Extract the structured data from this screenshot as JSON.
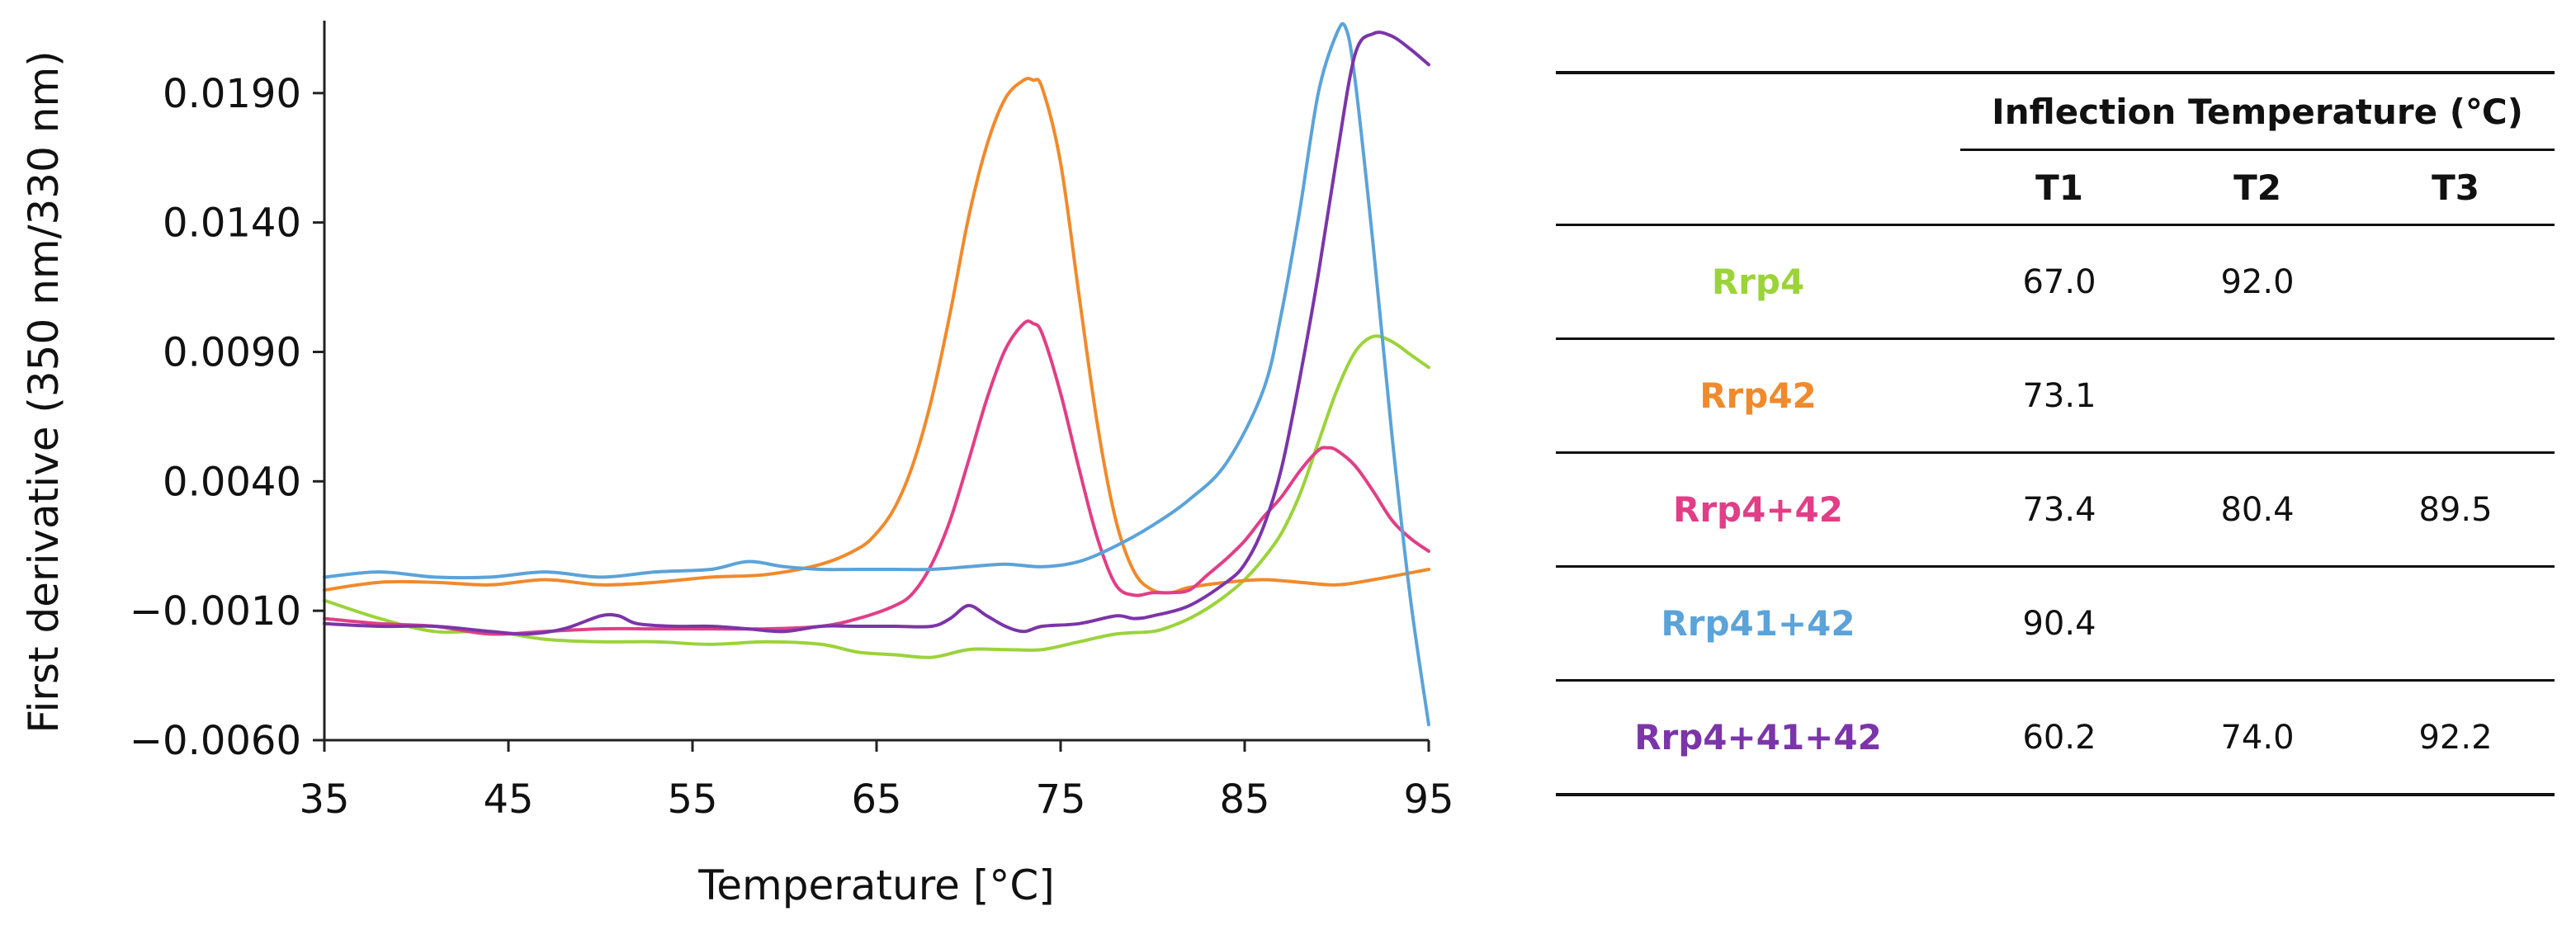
{
  "chart_data": {
    "type": "line",
    "xlabel": "Temperature [°C]",
    "ylabel": "First derivative (350 nm/330 nm)",
    "xlim": [
      35,
      95
    ],
    "ylim": [
      -0.006,
      0.0218
    ],
    "x_ticks": [
      35,
      45,
      55,
      65,
      75,
      85,
      95
    ],
    "y_ticks": [
      -0.006,
      -0.001,
      0.004,
      0.009,
      0.014,
      0.019
    ],
    "y_tick_labels": [
      "−0.0060",
      "−0.0010",
      "0.0040",
      "0.0090",
      "0.0140",
      "0.0190"
    ],
    "grid": false,
    "series": [
      {
        "name": "Rrp4",
        "color": "#9BD33A",
        "x": [
          35,
          38,
          41,
          44,
          47,
          50,
          53,
          56,
          59,
          62,
          64,
          66,
          68,
          70,
          72,
          74,
          76,
          78,
          80,
          81,
          82,
          83,
          84,
          85,
          86,
          87,
          88,
          89,
          90,
          91,
          92,
          93,
          94,
          95
        ],
        "y": [
          -0.0006,
          -0.0013,
          -0.0018,
          -0.0018,
          -0.0021,
          -0.0022,
          -0.0022,
          -0.0023,
          -0.0022,
          -0.0023,
          -0.0026,
          -0.0027,
          -0.0028,
          -0.0025,
          -0.0025,
          -0.0025,
          -0.0022,
          -0.0019,
          -0.0018,
          -0.0016,
          -0.0013,
          -0.0009,
          -0.0004,
          0.0002,
          0.001,
          0.002,
          0.0035,
          0.0055,
          0.0075,
          0.009,
          0.0096,
          0.0094,
          0.0089,
          0.0084
        ]
      },
      {
        "name": "Rrp42",
        "color": "#F08A2C",
        "x": [
          35,
          38,
          41,
          44,
          47,
          50,
          53,
          56,
          59,
          62,
          64,
          65,
          66,
          67,
          68,
          69,
          70,
          71,
          72,
          73,
          73.5,
          74,
          75,
          76,
          77,
          78,
          79,
          80,
          81,
          82,
          84,
          86,
          88,
          90,
          92,
          95
        ],
        "y": [
          -0.0002,
          0.0001,
          0.0001,
          0.0,
          0.0002,
          0.0,
          0.0001,
          0.0003,
          0.0004,
          0.0008,
          0.0014,
          0.002,
          0.003,
          0.0047,
          0.0072,
          0.0105,
          0.0142,
          0.017,
          0.0188,
          0.0195,
          0.0195,
          0.0192,
          0.0163,
          0.0112,
          0.0062,
          0.0025,
          0.0005,
          -0.0002,
          -0.0003,
          -0.0001,
          0.0001,
          0.0002,
          0.0001,
          0.0,
          0.0002,
          0.0006
        ]
      },
      {
        "name": "Rrp4+42",
        "color": "#E03F87",
        "x": [
          35,
          38,
          41,
          44,
          47,
          50,
          53,
          56,
          59,
          62,
          64,
          66,
          67,
          68,
          69,
          70,
          71,
          72,
          73,
          73.5,
          74,
          75,
          76,
          77,
          78,
          79,
          80,
          81,
          82,
          83,
          84,
          85,
          86,
          87,
          88,
          89,
          89.5,
          90,
          91,
          92,
          93,
          94,
          95
        ],
        "y": [
          -0.0013,
          -0.0015,
          -0.0016,
          -0.0019,
          -0.0018,
          -0.0017,
          -0.0017,
          -0.0017,
          -0.0017,
          -0.0016,
          -0.0013,
          -0.0008,
          -0.0003,
          0.0008,
          0.0025,
          0.0048,
          0.0072,
          0.0091,
          0.0101,
          0.0101,
          0.0097,
          0.0074,
          0.0045,
          0.0018,
          0.0,
          -0.0004,
          -0.0003,
          -0.0003,
          -0.0002,
          0.0004,
          0.001,
          0.0017,
          0.0026,
          0.0034,
          0.0044,
          0.0052,
          0.0053,
          0.0052,
          0.0046,
          0.0036,
          0.0025,
          0.0018,
          0.0013
        ]
      },
      {
        "name": "Rrp41+42",
        "color": "#5BA3D9",
        "x": [
          35,
          38,
          41,
          44,
          47,
          50,
          53,
          56,
          58,
          60,
          62,
          64,
          66,
          68,
          70,
          72,
          74,
          76,
          78,
          80,
          82,
          84,
          86,
          87,
          88,
          89,
          90,
          90.5,
          91,
          92,
          93,
          94,
          95
        ],
        "y": [
          0.0003,
          0.0005,
          0.0003,
          0.0003,
          0.0005,
          0.0003,
          0.0005,
          0.0006,
          0.0009,
          0.0007,
          0.0006,
          0.0006,
          0.0006,
          0.0006,
          0.0007,
          0.0008,
          0.0007,
          0.0009,
          0.0015,
          0.0023,
          0.0033,
          0.0047,
          0.0075,
          0.0105,
          0.0145,
          0.019,
          0.0213,
          0.0215,
          0.0195,
          0.013,
          0.0058,
          -0.0005,
          -0.0054
        ]
      },
      {
        "name": "Rrp4+41+42",
        "color": "#7B35A8",
        "x": [
          35,
          38,
          41,
          44,
          46,
          48,
          50,
          51,
          52,
          54,
          56,
          58,
          60,
          62,
          64,
          66,
          68,
          69,
          70,
          71,
          72,
          73,
          74,
          76,
          78,
          79,
          80,
          82,
          84,
          85,
          86,
          87,
          88,
          89,
          90,
          91,
          92,
          93,
          94,
          95
        ],
        "y": [
          -0.0015,
          -0.0016,
          -0.0016,
          -0.0018,
          -0.0019,
          -0.0017,
          -0.0012,
          -0.0012,
          -0.0015,
          -0.0016,
          -0.0016,
          -0.0017,
          -0.0018,
          -0.0016,
          -0.0016,
          -0.0016,
          -0.0016,
          -0.0013,
          -0.0008,
          -0.0012,
          -0.0016,
          -0.0018,
          -0.0016,
          -0.0015,
          -0.0012,
          -0.0013,
          -0.0012,
          -0.0008,
          0.0001,
          0.0008,
          0.0022,
          0.0045,
          0.008,
          0.012,
          0.0165,
          0.0205,
          0.0213,
          0.0212,
          0.0207,
          0.0201
        ]
      }
    ]
  },
  "table": {
    "group_header": "Inflection Temperature (℃)",
    "columns": [
      "T1",
      "T2",
      "T3"
    ],
    "rows": [
      {
        "name": "Rrp4",
        "color": "#9BD33A",
        "values": [
          "67.0",
          "92.0",
          ""
        ]
      },
      {
        "name": "Rrp42",
        "color": "#F08A2C",
        "values": [
          "73.1",
          "",
          ""
        ]
      },
      {
        "name": "Rrp4+42",
        "color": "#E03F87",
        "values": [
          "73.4",
          "80.4",
          "89.5"
        ]
      },
      {
        "name": "Rrp41+42",
        "color": "#5BA3D9",
        "values": [
          "90.4",
          "",
          ""
        ]
      },
      {
        "name": "Rrp4+41+42",
        "color": "#7B35A8",
        "values": [
          "60.2",
          "74.0",
          "92.2"
        ]
      }
    ]
  }
}
